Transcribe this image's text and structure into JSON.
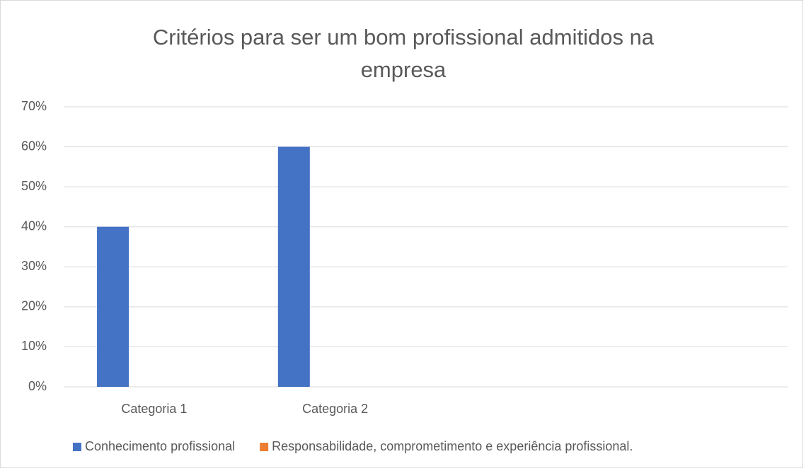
{
  "chart_data": {
    "type": "bar",
    "title": "Critérios para ser um bom profissional admitidos na empresa",
    "categories": [
      "Categoria 1",
      "Categoria 2",
      null,
      null
    ],
    "series": [
      {
        "name": "Conhecimento profissional",
        "color": "#4472c4",
        "values": [
          40,
          60,
          null,
          null
        ]
      },
      {
        "name": "Responsabilidade, comprometimento e experiência profissional.",
        "color": "#ed7d31",
        "values": [
          null,
          null,
          null,
          null
        ]
      }
    ],
    "ylim": [
      0,
      70
    ],
    "yticks": [
      {
        "value": 0,
        "label": "0%"
      },
      {
        "value": 10,
        "label": "10%"
      },
      {
        "value": 20,
        "label": "20%"
      },
      {
        "value": 30,
        "label": "30%"
      },
      {
        "value": 40,
        "label": "40%"
      },
      {
        "value": 50,
        "label": "50%"
      },
      {
        "value": 60,
        "label": "60%"
      },
      {
        "value": 70,
        "label": "70%"
      }
    ],
    "grid": true,
    "legend": "bottom"
  }
}
